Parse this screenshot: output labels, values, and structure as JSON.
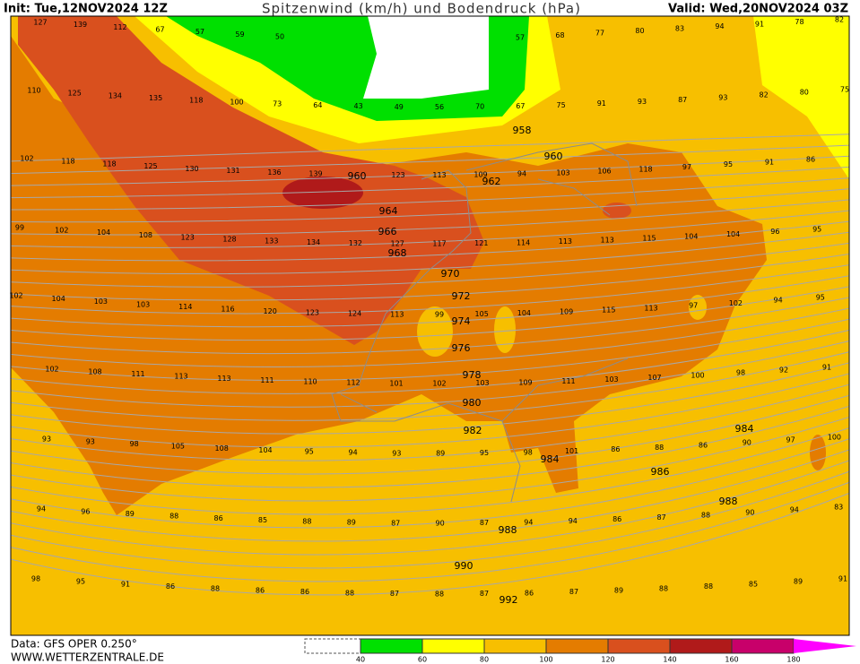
{
  "header": {
    "init": "Init: Tue,12NOV2024 12Z",
    "title": "Spitzenwind (km/h) und Bodendruck (hPa)",
    "valid": "Valid: Wed,20NOV2024 03Z"
  },
  "footer": {
    "data": "Data: GFS OPER 0.250°",
    "site": "WWW.WETTERZENTRALE.DE"
  },
  "legend": {
    "ticks": [
      40,
      60,
      80,
      100,
      120,
      140,
      160,
      180
    ],
    "colors": [
      "#00e000",
      "#ffff00",
      "#f7bf00",
      "#e47c00",
      "#d9501e",
      "#b01a1a",
      "#c8006a",
      "#ff00ff"
    ]
  },
  "pressure_labels": [
    958,
    960,
    960,
    962,
    964,
    966,
    968,
    970,
    972,
    974,
    976,
    978,
    980,
    982,
    984,
    984,
    986,
    988,
    988,
    990,
    992
  ],
  "wind_labels": [
    [
      127,
      139,
      112,
      67,
      57,
      59,
      50
    ],
    [
      57,
      68,
      77,
      80,
      83,
      94,
      91,
      78,
      82
    ],
    [
      110,
      125,
      134,
      135,
      118,
      100,
      73,
      64,
      43,
      49,
      56,
      70,
      67,
      75,
      91,
      93,
      87,
      93,
      82,
      80,
      75
    ],
    [
      102,
      118,
      118,
      125,
      130,
      131,
      136,
      139,
      null,
      123,
      113,
      109,
      94,
      103,
      106,
      118,
      97,
      95,
      91,
      86
    ],
    [
      99,
      102,
      104,
      108,
      123,
      128,
      133,
      134,
      132,
      127,
      117,
      121,
      114,
      113,
      113,
      115,
      104,
      104,
      96,
      95
    ],
    [
      102,
      104,
      103,
      103,
      114,
      116,
      120,
      123,
      124,
      113,
      99,
      105,
      104,
      109,
      115,
      113,
      97,
      102,
      94,
      95
    ],
    [
      102,
      108,
      111,
      113,
      113,
      111,
      110,
      112,
      101,
      102,
      103,
      109,
      111,
      103,
      107,
      100,
      98,
      92,
      91
    ],
    [
      93,
      93,
      98,
      105,
      108,
      104,
      95,
      94,
      93,
      89,
      95,
      98,
      101,
      86,
      88,
      86,
      90,
      97,
      100
    ],
    [
      94,
      96,
      89,
      88,
      86,
      85,
      88,
      89,
      87,
      90,
      87,
      94,
      94,
      86,
      87,
      88,
      90,
      94,
      83
    ],
    [
      98,
      95,
      91,
      86,
      88,
      86,
      86,
      88,
      87,
      88,
      87,
      86,
      87,
      89,
      88,
      88,
      85,
      89,
      91
    ]
  ]
}
